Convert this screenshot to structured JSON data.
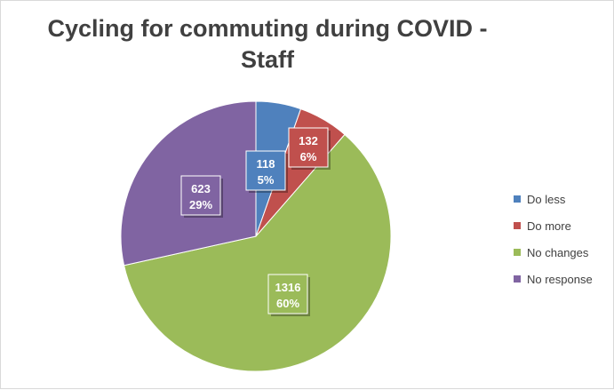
{
  "chart_data": {
    "type": "pie",
    "title": "Cycling for commuting during COVID - Staff",
    "title_lines": [
      "Cycling for commuting during COVID -",
      "Staff"
    ],
    "slices": [
      {
        "label": "Do less",
        "value": 118,
        "percent": "5%",
        "color": "#4f81bd"
      },
      {
        "label": "Do more",
        "value": 132,
        "percent": "6%",
        "color": "#c0504d"
      },
      {
        "label": "No changes",
        "value": 1316,
        "percent": "60%",
        "color": "#9bbb59"
      },
      {
        "label": "No response",
        "value": 623,
        "percent": "29%",
        "color": "#8064a2"
      }
    ],
    "legend_position": "right",
    "start_angle": "12 o'clock, clockwise"
  }
}
